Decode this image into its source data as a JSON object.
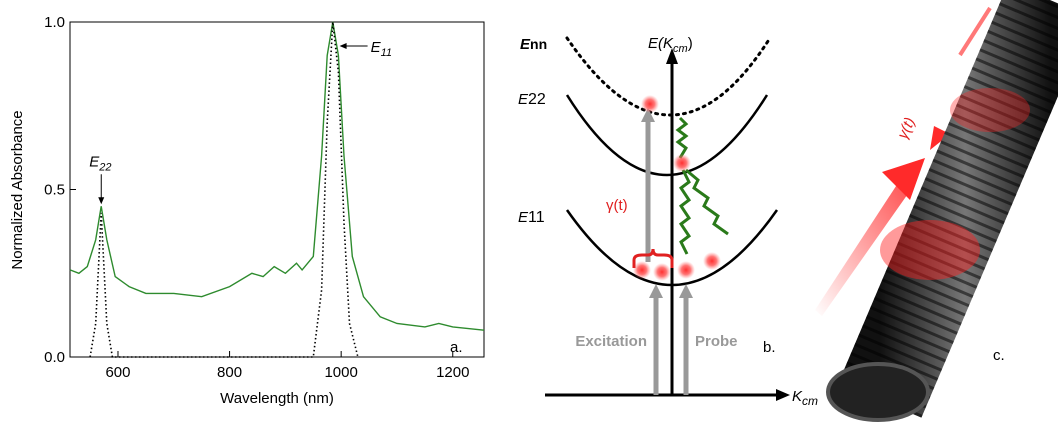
{
  "chart_data": {
    "type": "line",
    "xlabel": "Wavelength (nm)",
    "ylabel": "Normalized Absorbance",
    "panel": "a.",
    "xlim": [
      514,
      1256
    ],
    "xticks": [
      600,
      800,
      1000,
      1200
    ],
    "ylim": [
      0,
      1.0
    ],
    "yticks": [
      {
        "value": 0,
        "label": "0.0"
      },
      {
        "value": 0.5,
        "label": "0.5"
      },
      {
        "value": 1.0,
        "label": "1.0"
      }
    ],
    "series": [
      {
        "color": "#2e8b2e",
        "style": "solid",
        "x": [
          514,
          530,
          545,
          560,
          570,
          580,
          595,
          620,
          650,
          700,
          750,
          800,
          840,
          860,
          880,
          900,
          920,
          930,
          950,
          965,
          975,
          985,
          995,
          1005,
          1020,
          1040,
          1070,
          1100,
          1150,
          1175,
          1200,
          1256
        ],
        "values": [
          0.26,
          0.25,
          0.27,
          0.35,
          0.45,
          0.35,
          0.24,
          0.21,
          0.19,
          0.19,
          0.18,
          0.21,
          0.25,
          0.24,
          0.27,
          0.25,
          0.28,
          0.26,
          0.3,
          0.6,
          0.9,
          1.0,
          0.9,
          0.6,
          0.3,
          0.18,
          0.12,
          0.1,
          0.09,
          0.1,
          0.09,
          0.08
        ]
      },
      {
        "color": "#000000",
        "style": "dotted",
        "x": [
          550,
          560,
          570,
          580,
          590,
          950,
          965,
          975,
          985,
          995,
          1005,
          1015,
          1030
        ],
        "values": [
          0,
          0.1,
          0.43,
          0.1,
          0,
          0,
          0.2,
          0.7,
          1.0,
          0.85,
          0.4,
          0.1,
          0
        ]
      }
    ],
    "annotations": [
      {
        "main": "E",
        "sub": "22",
        "x": 570,
        "y": 0.45
      },
      {
        "main": "E",
        "sub": "11",
        "x": 990,
        "y": 0.97
      }
    ]
  },
  "diagram": {
    "levels": [
      {
        "main": "E",
        "sub": "nn"
      },
      {
        "main": "E",
        "sub": "22"
      },
      {
        "main": "E",
        "sub": "11"
      }
    ],
    "y_axis": {
      "main": "E(K",
      "sub": "cm",
      "end": ")"
    },
    "x_axis": {
      "main": "K",
      "sub": "cm"
    },
    "rate": "γ(t)",
    "excitation": "Excitation",
    "probe": "Probe",
    "panel": "b."
  },
  "image": {
    "rate": "γ(t)",
    "panel": "c."
  }
}
